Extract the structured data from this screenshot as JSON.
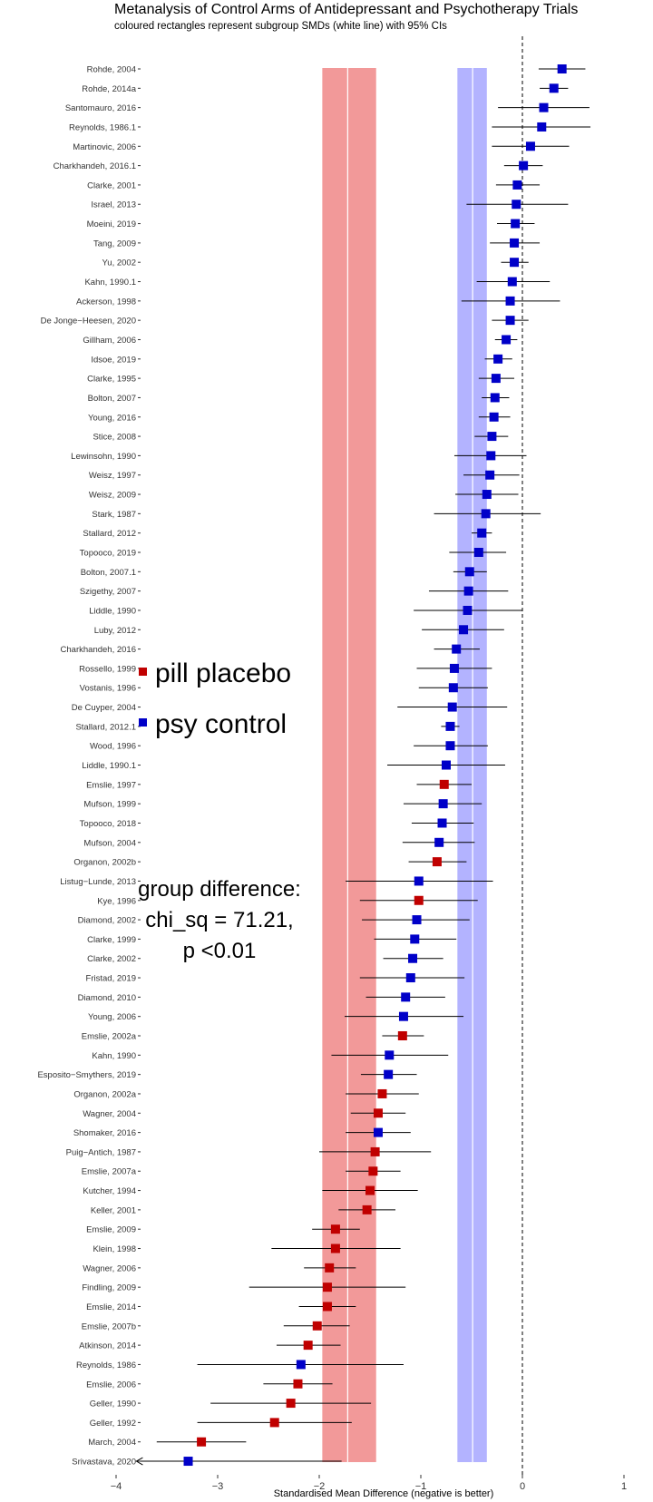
{
  "title": "Metanalysis of Control Arms of Antidepressant and Psychotherapy Trials",
  "subtitle": "coloured rectangles represent subgroup SMDs (white line) with 95% CIs",
  "colors": {
    "pill": "#c00000",
    "psy": "#0000c8",
    "pill_band": "#f29999",
    "psy_band": "#b3b3ff"
  },
  "chart_data": {
    "type": "forest",
    "xlabel": "Standardised Mean Difference (negative is better)",
    "xlim": [
      -4.1,
      1.3
    ],
    "xticks": [
      -4,
      -3,
      -2,
      -1,
      0,
      1
    ],
    "xtick_labels": [
      "−4",
      "−3",
      "−2",
      "−1",
      "0",
      "1"
    ],
    "reference_line": 0,
    "grid": false,
    "legend": [
      {
        "key": "pill",
        "label": "pill placebo"
      },
      {
        "key": "psy",
        "label": "psy control"
      }
    ],
    "annotation": [
      "group difference:",
      "chi_sq = 71.21,",
      "p <0.01"
    ],
    "subgroup_bands": [
      {
        "group": "pill",
        "estimate": -1.72,
        "lower": -1.97,
        "upper": -1.44
      },
      {
        "group": "psy",
        "estimate": -0.49,
        "lower": -0.64,
        "upper": -0.35
      }
    ],
    "studies": [
      {
        "study": "Rohde, 2004",
        "group": "psy",
        "smd": 0.39,
        "lower": 0.16,
        "upper": 0.62
      },
      {
        "study": "Rohde, 2014a",
        "group": "psy",
        "smd": 0.31,
        "lower": 0.17,
        "upper": 0.45
      },
      {
        "study": "Santomauro, 2016",
        "group": "psy",
        "smd": 0.21,
        "lower": -0.24,
        "upper": 0.66
      },
      {
        "study": "Reynolds, 1986.1",
        "group": "psy",
        "smd": 0.19,
        "lower": -0.3,
        "upper": 0.67
      },
      {
        "study": "Martinovic, 2006",
        "group": "psy",
        "smd": 0.08,
        "lower": -0.3,
        "upper": 0.46
      },
      {
        "study": "Charkhandeh, 2016.1",
        "group": "psy",
        "smd": 0.01,
        "lower": -0.18,
        "upper": 0.2
      },
      {
        "study": "Clarke, 2001",
        "group": "psy",
        "smd": -0.05,
        "lower": -0.26,
        "upper": 0.17
      },
      {
        "study": "Israel, 2013",
        "group": "psy",
        "smd": -0.06,
        "lower": -0.55,
        "upper": 0.45
      },
      {
        "study": "Moeini, 2019",
        "group": "psy",
        "smd": -0.07,
        "lower": -0.25,
        "upper": 0.12
      },
      {
        "study": "Tang, 2009",
        "group": "psy",
        "smd": -0.08,
        "lower": -0.32,
        "upper": 0.17
      },
      {
        "study": "Yu, 2002",
        "group": "psy",
        "smd": -0.08,
        "lower": -0.21,
        "upper": 0.06
      },
      {
        "study": "Kahn, 1990.1",
        "group": "psy",
        "smd": -0.1,
        "lower": -0.45,
        "upper": 0.27
      },
      {
        "study": "Ackerson, 1998",
        "group": "psy",
        "smd": -0.12,
        "lower": -0.6,
        "upper": 0.37
      },
      {
        "study": "De Jonge−Heesen, 2020",
        "group": "psy",
        "smd": -0.12,
        "lower": -0.3,
        "upper": 0.06
      },
      {
        "study": "Gillham, 2006",
        "group": "psy",
        "smd": -0.16,
        "lower": -0.27,
        "upper": -0.05
      },
      {
        "study": "Idsoe, 2019",
        "group": "psy",
        "smd": -0.24,
        "lower": -0.37,
        "upper": -0.1
      },
      {
        "study": "Clarke, 1995",
        "group": "psy",
        "smd": -0.26,
        "lower": -0.43,
        "upper": -0.08
      },
      {
        "study": "Bolton, 2007",
        "group": "psy",
        "smd": -0.27,
        "lower": -0.4,
        "upper": -0.13
      },
      {
        "study": "Young, 2016",
        "group": "psy",
        "smd": -0.28,
        "lower": -0.43,
        "upper": -0.12
      },
      {
        "study": "Stice, 2008",
        "group": "psy",
        "smd": -0.3,
        "lower": -0.47,
        "upper": -0.14
      },
      {
        "study": "Lewinsohn, 1990",
        "group": "psy",
        "smd": -0.31,
        "lower": -0.67,
        "upper": 0.04
      },
      {
        "study": "Weisz, 1997",
        "group": "psy",
        "smd": -0.32,
        "lower": -0.58,
        "upper": -0.03
      },
      {
        "study": "Weisz, 2009",
        "group": "psy",
        "smd": -0.35,
        "lower": -0.66,
        "upper": -0.04
      },
      {
        "study": "Stark, 1987",
        "group": "psy",
        "smd": -0.36,
        "lower": -0.87,
        "upper": 0.18
      },
      {
        "study": "Stallard, 2012",
        "group": "psy",
        "smd": -0.4,
        "lower": -0.5,
        "upper": -0.3
      },
      {
        "study": "Topooco, 2019",
        "group": "psy",
        "smd": -0.43,
        "lower": -0.72,
        "upper": -0.16
      },
      {
        "study": "Bolton, 2007.1",
        "group": "psy",
        "smd": -0.52,
        "lower": -0.68,
        "upper": -0.35
      },
      {
        "study": "Szigethy, 2007",
        "group": "psy",
        "smd": -0.53,
        "lower": -0.92,
        "upper": -0.14
      },
      {
        "study": "Liddle, 1990",
        "group": "psy",
        "smd": -0.54,
        "lower": -1.07,
        "upper": 0.0
      },
      {
        "study": "Luby, 2012",
        "group": "psy",
        "smd": -0.58,
        "lower": -0.99,
        "upper": -0.18
      },
      {
        "study": "Charkhandeh, 2016",
        "group": "psy",
        "smd": -0.65,
        "lower": -0.87,
        "upper": -0.42
      },
      {
        "study": "Rossello, 1999",
        "group": "psy",
        "smd": -0.67,
        "lower": -1.04,
        "upper": -0.3
      },
      {
        "study": "Vostanis, 1996",
        "group": "psy",
        "smd": -0.68,
        "lower": -1.02,
        "upper": -0.34
      },
      {
        "study": "De Cuyper, 2004",
        "group": "psy",
        "smd": -0.69,
        "lower": -1.23,
        "upper": -0.15
      },
      {
        "study": "Stallard, 2012.1",
        "group": "psy",
        "smd": -0.71,
        "lower": -0.8,
        "upper": -0.62
      },
      {
        "study": "Wood, 1996",
        "group": "psy",
        "smd": -0.71,
        "lower": -1.07,
        "upper": -0.34
      },
      {
        "study": "Liddle, 1990.1",
        "group": "psy",
        "smd": -0.75,
        "lower": -1.33,
        "upper": -0.17
      },
      {
        "study": "Emslie, 1997",
        "group": "pill",
        "smd": -0.77,
        "lower": -1.04,
        "upper": -0.5
      },
      {
        "study": "Mufson, 1999",
        "group": "psy",
        "smd": -0.78,
        "lower": -1.17,
        "upper": -0.4
      },
      {
        "study": "Topooco, 2018",
        "group": "psy",
        "smd": -0.79,
        "lower": -1.09,
        "upper": -0.48
      },
      {
        "study": "Mufson, 2004",
        "group": "psy",
        "smd": -0.82,
        "lower": -1.18,
        "upper": -0.47
      },
      {
        "study": "Organon, 2002b",
        "group": "pill",
        "smd": -0.84,
        "lower": -1.12,
        "upper": -0.55
      },
      {
        "study": "Listug−Lunde, 2013",
        "group": "psy",
        "smd": -1.02,
        "lower": -1.74,
        "upper": -0.29
      },
      {
        "study": "Kye, 1996",
        "group": "pill",
        "smd": -1.02,
        "lower": -1.6,
        "upper": -0.44
      },
      {
        "study": "Diamond, 2002",
        "group": "psy",
        "smd": -1.04,
        "lower": -1.58,
        "upper": -0.52
      },
      {
        "study": "Clarke, 1999",
        "group": "psy",
        "smd": -1.06,
        "lower": -1.46,
        "upper": -0.65
      },
      {
        "study": "Clarke, 2002",
        "group": "psy",
        "smd": -1.08,
        "lower": -1.37,
        "upper": -0.78
      },
      {
        "study": "Fristad, 2019",
        "group": "psy",
        "smd": -1.1,
        "lower": -1.6,
        "upper": -0.57
      },
      {
        "study": "Diamond, 2010",
        "group": "psy",
        "smd": -1.15,
        "lower": -1.54,
        "upper": -0.76
      },
      {
        "study": "Young, 2006",
        "group": "psy",
        "smd": -1.17,
        "lower": -1.75,
        "upper": -0.58
      },
      {
        "study": "Emslie, 2002a",
        "group": "pill",
        "smd": -1.18,
        "lower": -1.38,
        "upper": -0.97
      },
      {
        "study": "Kahn, 1990",
        "group": "psy",
        "smd": -1.31,
        "lower": -1.88,
        "upper": -0.73
      },
      {
        "study": "Esposito−Smythers, 2019",
        "group": "psy",
        "smd": -1.32,
        "lower": -1.59,
        "upper": -1.04
      },
      {
        "study": "Organon, 2002a",
        "group": "pill",
        "smd": -1.38,
        "lower": -1.74,
        "upper": -1.02
      },
      {
        "study": "Wagner, 2004",
        "group": "pill",
        "smd": -1.42,
        "lower": -1.69,
        "upper": -1.15
      },
      {
        "study": "Shomaker, 2016",
        "group": "psy",
        "smd": -1.42,
        "lower": -1.74,
        "upper": -1.1
      },
      {
        "study": "Puig−Antich, 1987",
        "group": "pill",
        "smd": -1.45,
        "lower": -2.0,
        "upper": -0.9
      },
      {
        "study": "Emslie, 2007a",
        "group": "pill",
        "smd": -1.47,
        "lower": -1.74,
        "upper": -1.2
      },
      {
        "study": "Kutcher, 1994",
        "group": "pill",
        "smd": -1.5,
        "lower": -1.97,
        "upper": -1.03
      },
      {
        "study": "Keller, 2001",
        "group": "pill",
        "smd": -1.53,
        "lower": -1.81,
        "upper": -1.25
      },
      {
        "study": "Emslie, 2009",
        "group": "pill",
        "smd": -1.84,
        "lower": -2.07,
        "upper": -1.6
      },
      {
        "study": "Klein, 1998",
        "group": "pill",
        "smd": -1.84,
        "lower": -2.47,
        "upper": -1.2
      },
      {
        "study": "Wagner, 2006",
        "group": "pill",
        "smd": -1.9,
        "lower": -2.15,
        "upper": -1.64
      },
      {
        "study": "Findling, 2009",
        "group": "pill",
        "smd": -1.92,
        "lower": -2.69,
        "upper": -1.15
      },
      {
        "study": "Emslie, 2014",
        "group": "pill",
        "smd": -1.92,
        "lower": -2.2,
        "upper": -1.64
      },
      {
        "study": "Emslie, 2007b",
        "group": "pill",
        "smd": -2.02,
        "lower": -2.35,
        "upper": -1.7
      },
      {
        "study": "Atkinson, 2014",
        "group": "pill",
        "smd": -2.11,
        "lower": -2.42,
        "upper": -1.79
      },
      {
        "study": "Reynolds, 1986",
        "group": "psy",
        "smd": -2.18,
        "lower": -3.2,
        "upper": -1.17
      },
      {
        "study": "Emslie, 2006",
        "group": "pill",
        "smd": -2.21,
        "lower": -2.55,
        "upper": -1.87
      },
      {
        "study": "Geller, 1990",
        "group": "pill",
        "smd": -2.28,
        "lower": -3.07,
        "upper": -1.49
      },
      {
        "study": "Geller, 1992",
        "group": "pill",
        "smd": -2.44,
        "lower": -3.2,
        "upper": -1.68
      },
      {
        "study": "March, 2004",
        "group": "pill",
        "smd": -3.16,
        "lower": -3.6,
        "upper": -2.72
      },
      {
        "study": "Srivastava, 2020",
        "group": "psy",
        "smd": -3.29,
        "lower": -3.8,
        "upper": -1.78,
        "lower_truncated": true
      }
    ]
  }
}
